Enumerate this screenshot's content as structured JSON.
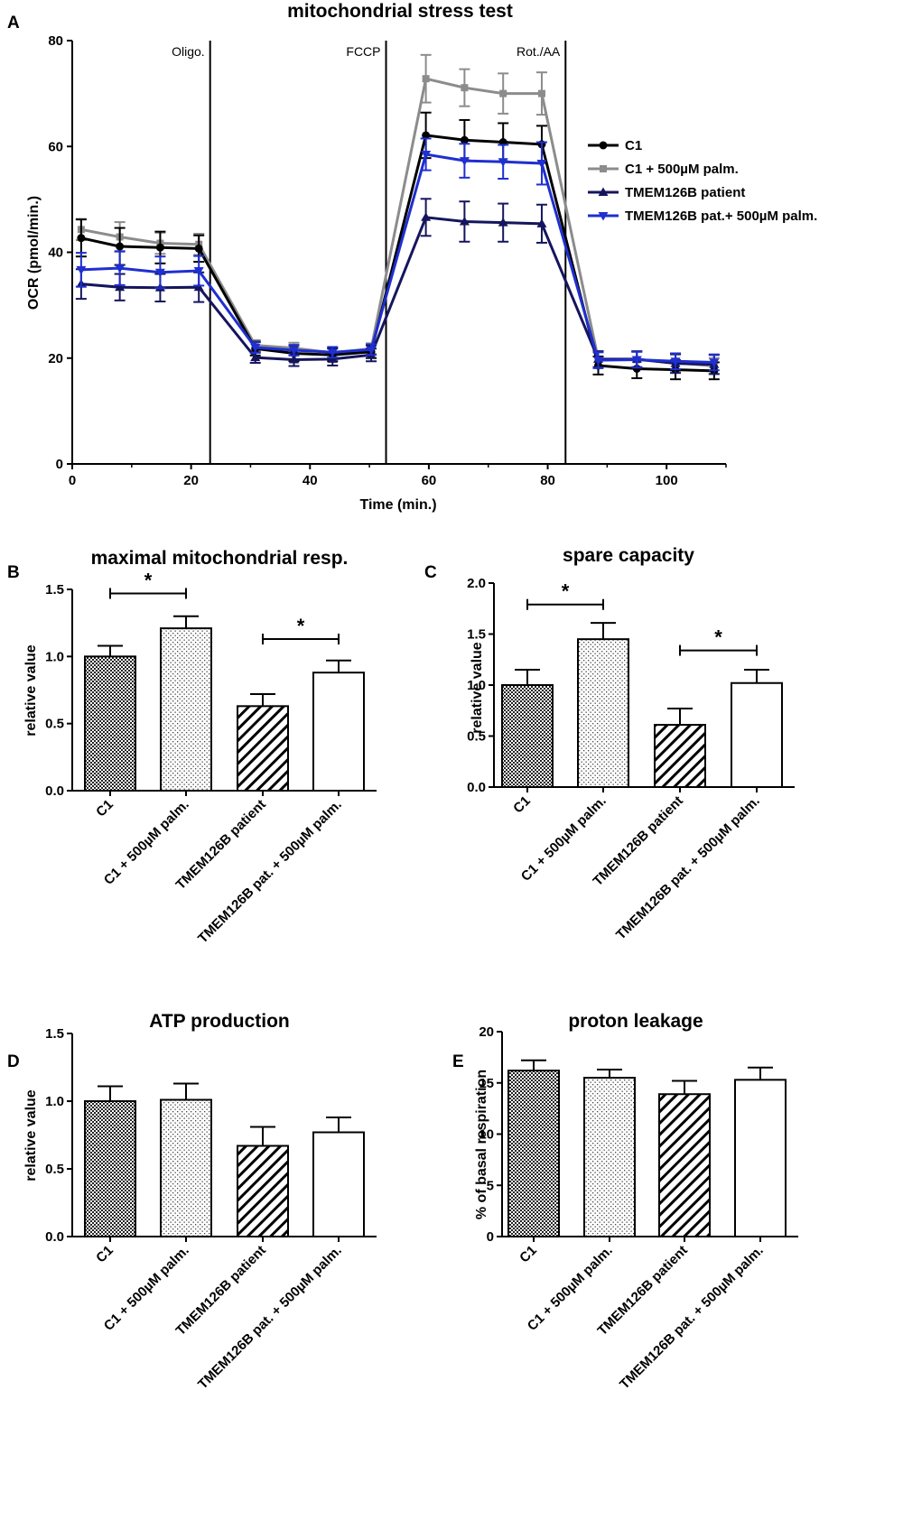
{
  "chart_data": [
    {
      "id": "A",
      "panel_letter": "A",
      "type": "line",
      "title": "mitochondrial stress test",
      "xlabel": "Time (min.)",
      "ylabel": "OCR (pmol/min.)",
      "xlim": [
        0,
        110
      ],
      "ylim": [
        0,
        80
      ],
      "xticks": [
        0,
        20,
        40,
        60,
        80,
        100
      ],
      "yticks": [
        0,
        20,
        40,
        60,
        80
      ],
      "events": [
        {
          "x": 23.2,
          "label": "Oligo."
        },
        {
          "x": 52.8,
          "label": "FCCP"
        },
        {
          "x": 83.0,
          "label": "Rot./AA"
        }
      ],
      "x": [
        1.5,
        8.0,
        14.8,
        21.3,
        30.8,
        37.3,
        43.8,
        50.3,
        59.5,
        66.0,
        72.5,
        79.0,
        88.5,
        95.0,
        101.5,
        108.0
      ],
      "series": [
        {
          "name": "C1",
          "color": "#000000",
          "marker": "circle",
          "values": [
            42.7,
            41.1,
            40.9,
            40.7,
            21.8,
            20.9,
            20.6,
            21.2,
            62.1,
            61.2,
            60.8,
            60.4,
            18.6,
            18.0,
            17.8,
            17.6
          ],
          "errors": [
            3.5,
            3.5,
            3.0,
            2.5,
            1.3,
            1.5,
            1.2,
            1.2,
            4.3,
            3.8,
            3.6,
            3.5,
            1.7,
            1.8,
            1.8,
            1.6
          ]
        },
        {
          "name": "C1 + 500µM palm.",
          "color": "#8c8c8c",
          "marker": "square",
          "values": [
            44.3,
            42.9,
            41.7,
            41.5,
            22.4,
            21.9,
            21.0,
            21.8,
            72.8,
            71.1,
            70.0,
            70.0,
            19.8,
            19.7,
            19.1,
            18.5
          ],
          "errors": [
            2.0,
            2.8,
            2.0,
            2.0,
            1.0,
            1.0,
            1.0,
            1.0,
            4.5,
            3.5,
            3.8,
            4.0,
            1.5,
            1.5,
            1.5,
            1.5
          ]
        },
        {
          "name": "TMEM126B patient",
          "color": "#15155e",
          "marker": "triangle-up",
          "values": [
            34.0,
            33.4,
            33.3,
            33.4,
            20.1,
            19.7,
            19.8,
            20.6,
            46.6,
            45.8,
            45.6,
            45.4,
            19.8,
            19.8,
            19.0,
            18.8
          ],
          "errors": [
            2.8,
            2.5,
            2.6,
            2.8,
            1.0,
            1.2,
            1.2,
            1.2,
            3.5,
            3.8,
            3.6,
            3.6,
            1.5,
            1.5,
            1.8,
            1.8
          ]
        },
        {
          "name": "TMEM126B pat.+ 500µM palm.",
          "color": "#1f2fd0",
          "marker": "triangle-down",
          "values": [
            36.7,
            37.0,
            36.2,
            36.5,
            22.0,
            21.5,
            21.1,
            21.6,
            58.5,
            57.3,
            57.1,
            56.8,
            19.6,
            19.7,
            19.4,
            19.2
          ],
          "errors": [
            3.2,
            3.2,
            3.0,
            2.8,
            1.0,
            1.0,
            1.0,
            1.0,
            3.0,
            3.2,
            3.2,
            4.0,
            1.5,
            1.5,
            1.5,
            1.5
          ]
        }
      ],
      "legend_position": "right"
    },
    {
      "id": "B",
      "panel_letter": "B",
      "type": "bar",
      "title": "maximal mitochondrial resp.",
      "xlabel": "",
      "ylabel": "relative value",
      "ylim": [
        0,
        1.5
      ],
      "yticks": [
        "0.0",
        "0.5",
        "1.0",
        "1.5"
      ],
      "categories": [
        "C1",
        "C1 + 500µM palm.",
        "TMEM126B patient",
        "TMEM126B pat. + 500µM palm."
      ],
      "values": [
        1.0,
        1.21,
        0.63,
        0.88
      ],
      "errors": [
        0.08,
        0.09,
        0.09,
        0.09
      ],
      "patterns": [
        "checker",
        "dots",
        "hatch",
        "none"
      ],
      "significance": [
        {
          "from": 0,
          "to": 1,
          "at": 1.47,
          "label": "*"
        },
        {
          "from": 2,
          "to": 3,
          "at": 1.13,
          "label": "*"
        }
      ]
    },
    {
      "id": "C",
      "panel_letter": "C",
      "type": "bar",
      "title": "spare capacity",
      "xlabel": "",
      "ylabel": "relative value",
      "ylim": [
        0,
        2.0
      ],
      "yticks": [
        "0.0",
        "0.5",
        "1.0",
        "1.5",
        "2.0"
      ],
      "categories": [
        "C1",
        "C1 + 500µM palm.",
        "TMEM126B patient",
        "TMEM126B pat. + 500µM palm."
      ],
      "values": [
        1.0,
        1.45,
        0.61,
        1.02
      ],
      "errors": [
        0.15,
        0.16,
        0.16,
        0.13
      ],
      "patterns": [
        "checker",
        "dots",
        "hatch",
        "none"
      ],
      "significance": [
        {
          "from": 0,
          "to": 1,
          "at": 1.79,
          "label": "*"
        },
        {
          "from": 2,
          "to": 3,
          "at": 1.34,
          "label": "*"
        }
      ]
    },
    {
      "id": "D",
      "panel_letter": "D",
      "type": "bar",
      "title": "ATP production",
      "xlabel": "",
      "ylabel": "relative value",
      "ylim": [
        0,
        1.5
      ],
      "yticks": [
        "0.0",
        "0.5",
        "1.0",
        "1.5"
      ],
      "categories": [
        "C1",
        "C1 + 500µM palm.",
        "TMEM126B patient",
        "TMEM126B pat. + 500µM palm."
      ],
      "values": [
        1.0,
        1.01,
        0.67,
        0.77
      ],
      "errors": [
        0.11,
        0.12,
        0.14,
        0.11
      ],
      "patterns": [
        "checker",
        "dots",
        "hatch",
        "none"
      ],
      "significance": []
    },
    {
      "id": "E",
      "panel_letter": "E",
      "type": "bar",
      "title": "proton leakage",
      "xlabel": "",
      "ylabel": "% of basal respiration",
      "ylim": [
        0,
        20
      ],
      "yticks": [
        "0",
        "5",
        "10",
        "15",
        "20"
      ],
      "categories": [
        "C1",
        "C1 + 500µM palm.",
        "TMEM126B patient",
        "TMEM126B pat. + 500µM palm."
      ],
      "values": [
        16.2,
        15.5,
        13.9,
        15.3
      ],
      "errors": [
        1.0,
        0.8,
        1.3,
        1.2
      ],
      "patterns": [
        "checker",
        "dots",
        "hatch",
        "none"
      ],
      "significance": []
    }
  ]
}
